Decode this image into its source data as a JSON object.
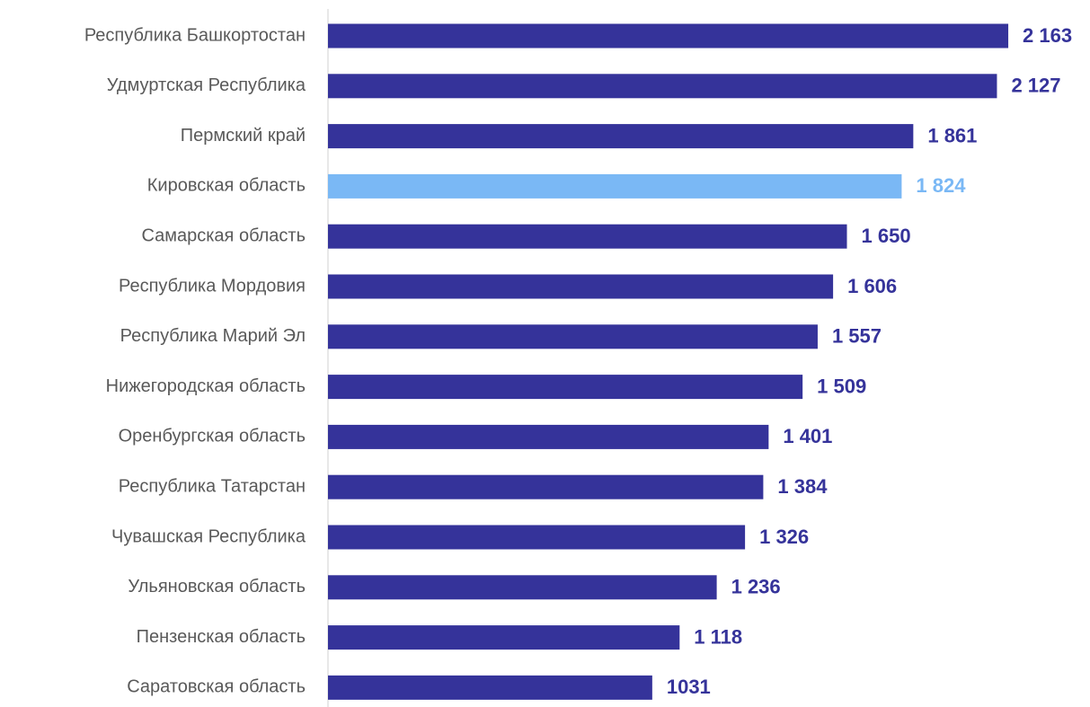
{
  "chart_data": {
    "type": "bar",
    "orientation": "horizontal",
    "categories": [
      "Республика Башкортостан",
      "Удмуртская Республика",
      "Пермский край",
      "Кировская область",
      "Самарская область",
      "Республика Мордовия",
      "Республика Марий Эл",
      "Нижегородская область",
      "Оренбургская область",
      "Республика Татарстан",
      "Чувашская Республика ",
      "Ульяновская область",
      "Пензенская область",
      "Саратовская область"
    ],
    "values": [
      2163,
      2127,
      1861,
      1824,
      1650,
      1606,
      1557,
      1509,
      1401,
      1384,
      1326,
      1236,
      1118,
      1031
    ],
    "value_labels": [
      "2 163",
      "2 127",
      "1 861",
      "1 824",
      "1 650",
      "1 606",
      "1 557",
      "1 509",
      "1 401",
      "1 384",
      "1 326",
      "1 236",
      "1 118",
      "1031"
    ],
    "colors": [
      "#35339a",
      "#35339a",
      "#35339a",
      "#7ab8f5",
      "#35339a",
      "#35339a",
      "#35339a",
      "#35339a",
      "#35339a",
      "#35339a",
      "#35339a",
      "#35339a",
      "#35339a",
      "#35339a"
    ],
    "xlim": [
      0,
      2400
    ]
  }
}
